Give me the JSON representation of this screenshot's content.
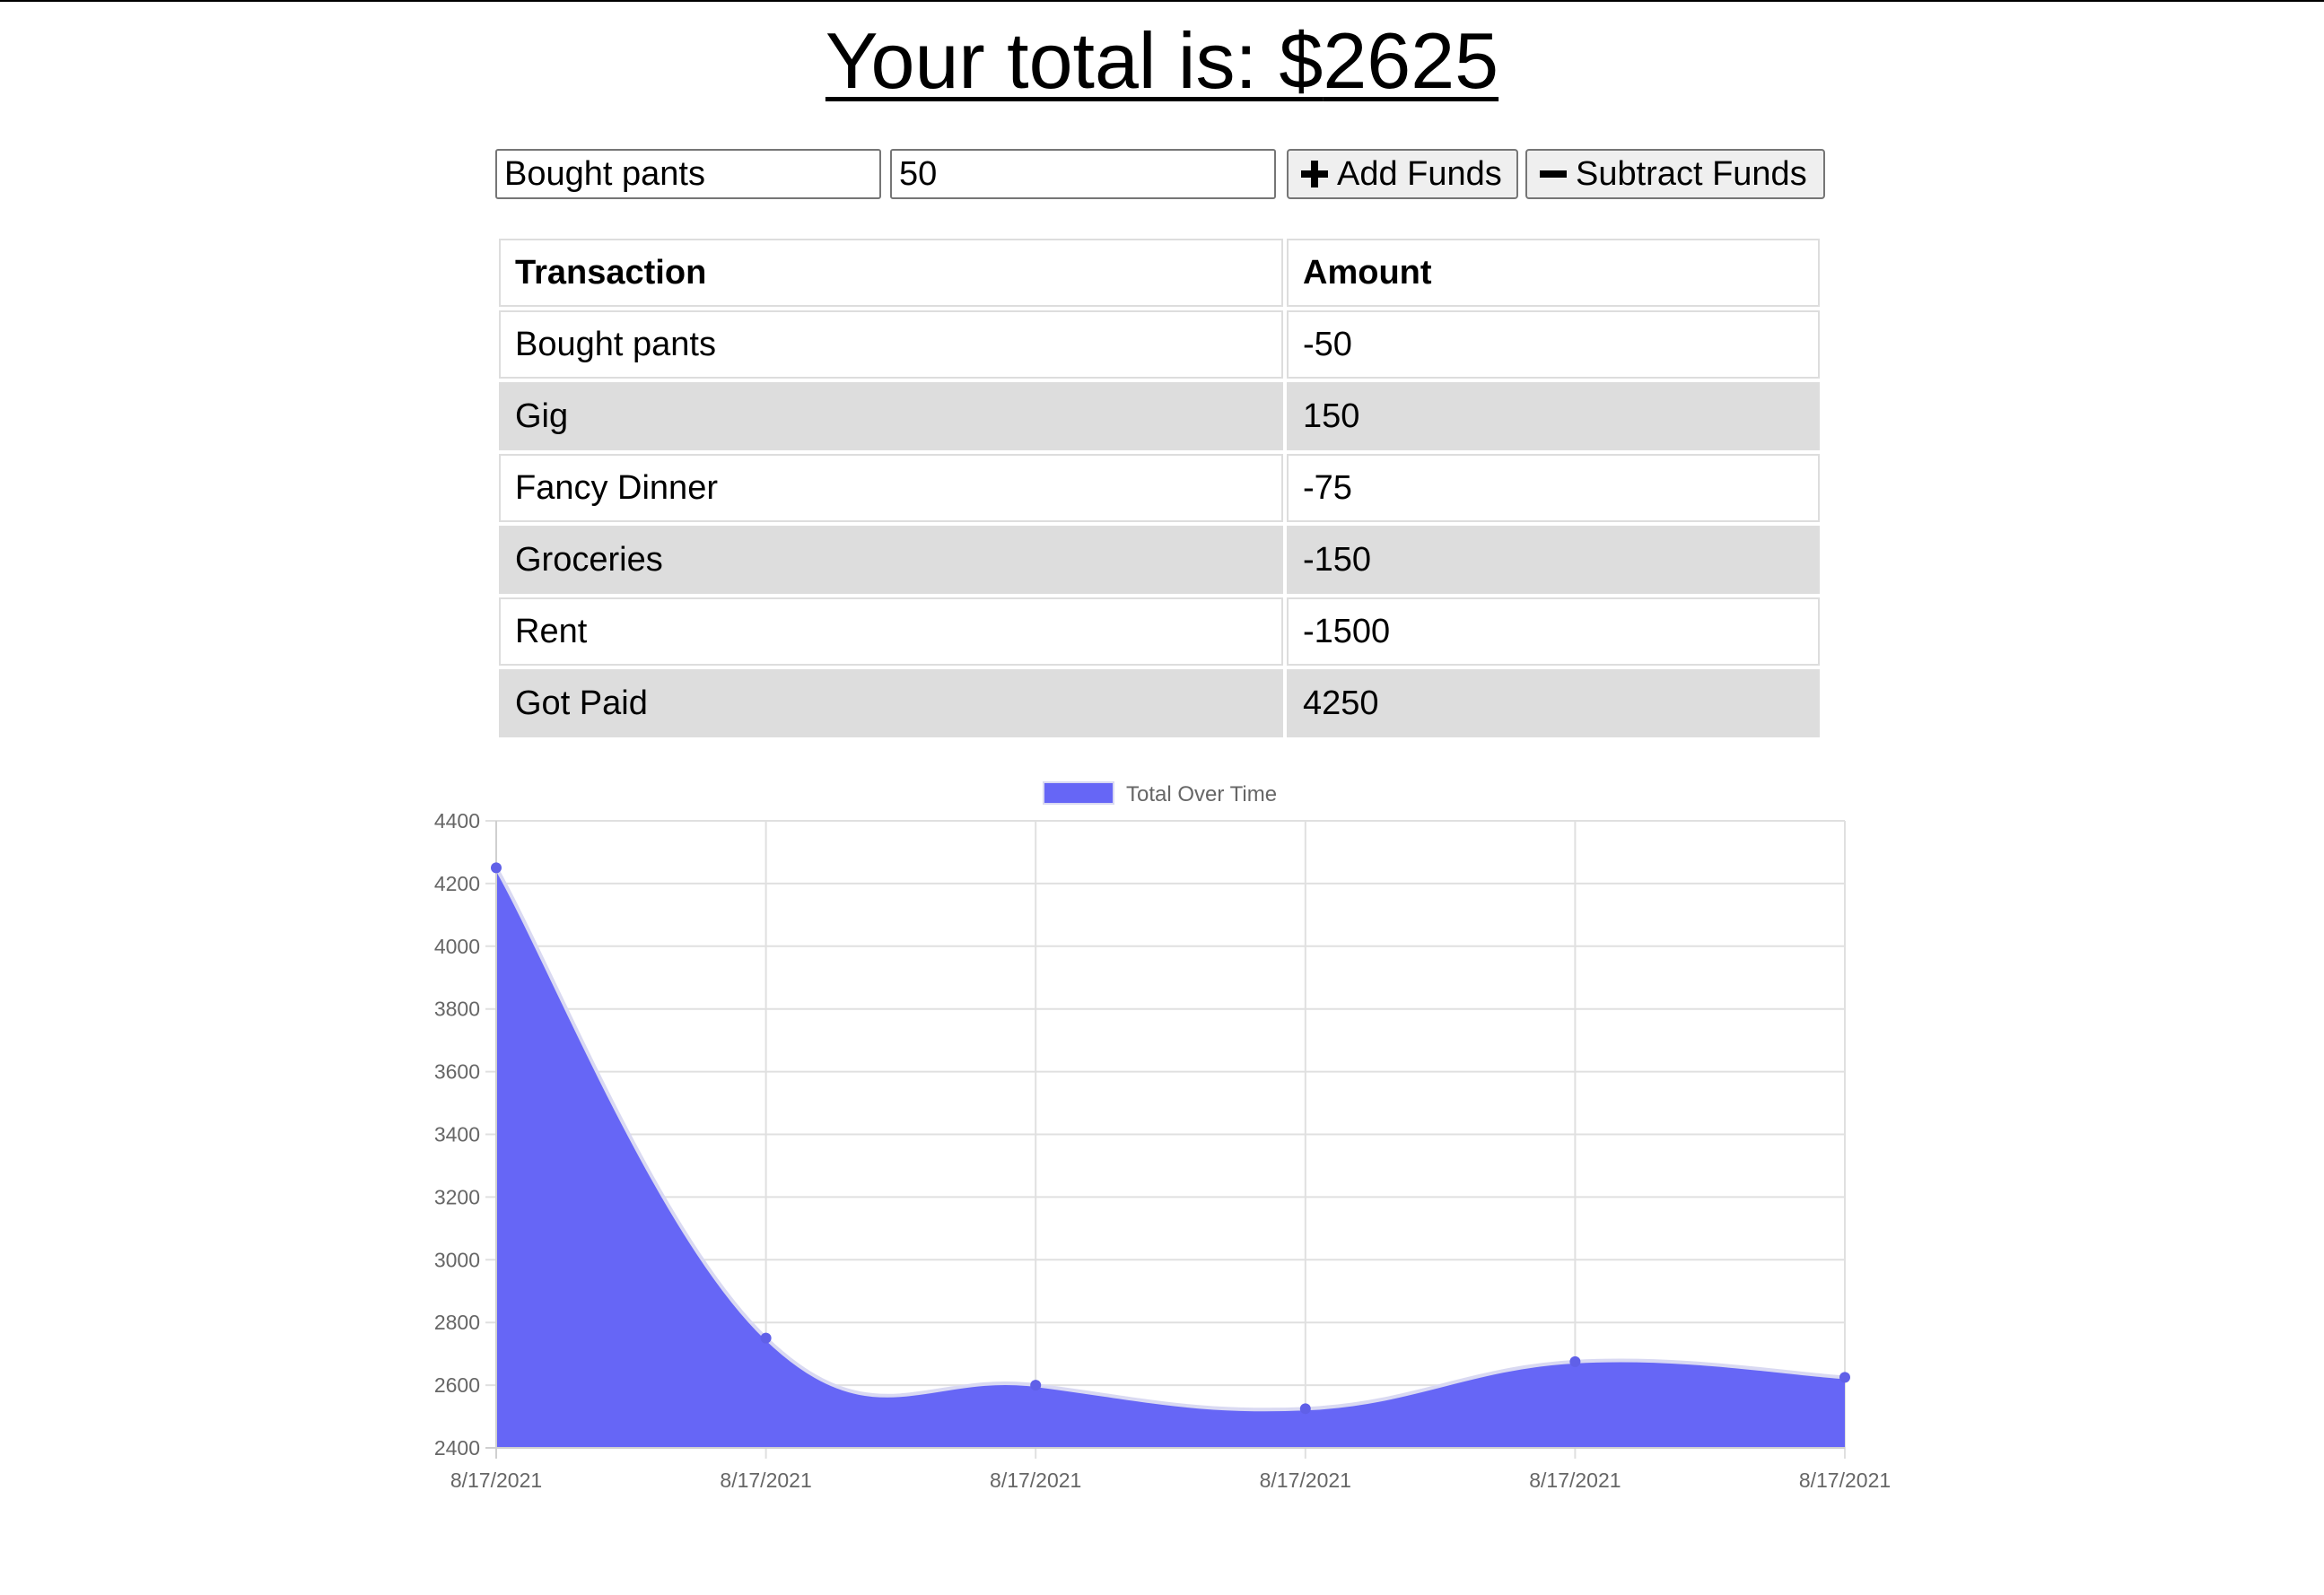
{
  "header": {
    "total_label": "Your total is: $",
    "total_value": "2625"
  },
  "form": {
    "name_value": "Bought pants",
    "amount_value": "50",
    "add_button_label": "Add Funds",
    "subtract_button_label": "Subtract Funds"
  },
  "table": {
    "columns": [
      "Transaction",
      "Amount"
    ],
    "rows": [
      {
        "name": "Bought pants",
        "amount": "-50"
      },
      {
        "name": "Gig",
        "amount": "150"
      },
      {
        "name": "Fancy Dinner",
        "amount": "-75"
      },
      {
        "name": "Groceries",
        "amount": "-150"
      },
      {
        "name": "Rent",
        "amount": "-1500"
      },
      {
        "name": "Got Paid",
        "amount": "4250"
      }
    ]
  },
  "chart_data": {
    "type": "area",
    "legend_position": "top",
    "grid": true,
    "fill_color": "#6666f6",
    "line_color": "#6060e8",
    "x": [
      "8/17/2021",
      "8/17/2021",
      "8/17/2021",
      "8/17/2021",
      "8/17/2021",
      "8/17/2021"
    ],
    "series": [
      {
        "name": "Total Over Time",
        "values": [
          4250,
          2750,
          2600,
          2525,
          2675,
          2625
        ]
      }
    ],
    "ylim": [
      2400,
      4400
    ],
    "yticks": [
      2400,
      2600,
      2800,
      3000,
      3200,
      3400,
      3600,
      3800,
      4000,
      4200,
      4400
    ]
  }
}
